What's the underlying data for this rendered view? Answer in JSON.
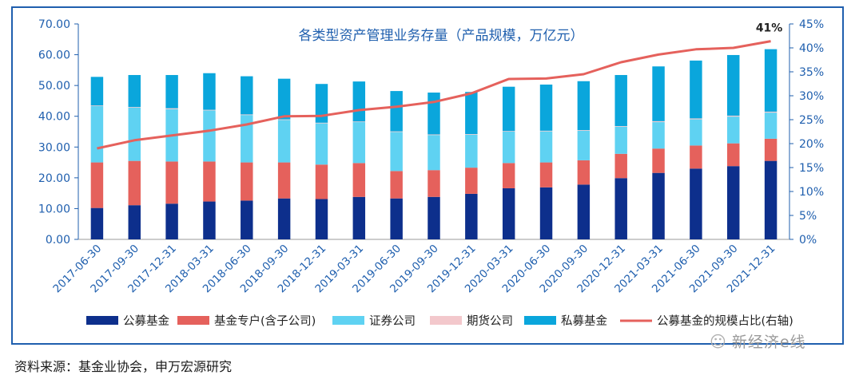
{
  "colors": {
    "public_fund": "#0d2f8c",
    "special_account": "#e5615c",
    "securities": "#5fd2f2",
    "futures": "#f3c8cc",
    "private_fund": "#0aa6dc",
    "ratio_line": "#e5615c",
    "axis_text": "#1f5fae",
    "frame": "#1f5fae"
  },
  "chart_data": {
    "type": "bar",
    "stacked": true,
    "title": "各类型资产管理业务存量（产品规模，万亿元）",
    "categories": [
      "2017-06-30",
      "2017-09-30",
      "2017-12-31",
      "2018-03-31",
      "2018-06-30",
      "2018-09-30",
      "2018-12-31",
      "2019-03-31",
      "2019-06-30",
      "2019-09-30",
      "2019-12-31",
      "2020-03-31",
      "2020-06-30",
      "2020-09-30",
      "2020-12-31",
      "2021-03-31",
      "2021-06-30",
      "2021-09-30",
      "2021-12-31"
    ],
    "series": [
      {
        "name": "公募基金",
        "key": "public_fund",
        "values": [
          10.2,
          11.1,
          11.6,
          12.3,
          12.6,
          13.3,
          13.1,
          13.8,
          13.3,
          13.8,
          14.8,
          16.6,
          16.9,
          17.8,
          19.9,
          21.6,
          23.0,
          23.8,
          25.5
        ]
      },
      {
        "name": "基金专户(含子公司)",
        "key": "special_account",
        "values": [
          14.8,
          14.4,
          13.7,
          13.0,
          12.4,
          11.7,
          11.2,
          11.0,
          8.9,
          8.7,
          8.5,
          8.2,
          8.1,
          7.9,
          7.9,
          7.9,
          7.5,
          7.4,
          7.2
        ]
      },
      {
        "name": "证券公司",
        "key": "securities",
        "values": [
          18.3,
          17.3,
          17.0,
          16.6,
          15.4,
          13.8,
          13.4,
          13.3,
          12.7,
          11.4,
          10.7,
          10.2,
          10.1,
          9.6,
          8.8,
          8.6,
          8.5,
          8.7,
          8.5
        ]
      },
      {
        "name": "期货公司",
        "key": "futures",
        "values": [
          0.2,
          0.2,
          0.3,
          0.2,
          0.2,
          0.2,
          0.2,
          0.2,
          0.2,
          0.2,
          0.2,
          0.2,
          0.2,
          0.2,
          0.2,
          0.3,
          0.3,
          0.3,
          0.3
        ]
      },
      {
        "name": "私募基金",
        "key": "private_fund",
        "values": [
          9.3,
          10.4,
          10.8,
          11.9,
          12.4,
          13.2,
          12.6,
          13.0,
          13.1,
          13.6,
          13.7,
          14.4,
          15.0,
          15.9,
          16.6,
          17.8,
          18.8,
          19.7,
          20.3
        ]
      }
    ],
    "line": {
      "name": "公募基金的规模占比(右轴)",
      "values": [
        19.0,
        20.7,
        21.7,
        22.7,
        24.0,
        25.7,
        25.8,
        27.0,
        27.7,
        28.7,
        30.5,
        33.5,
        33.6,
        34.5,
        37.0,
        38.6,
        39.7,
        40.0,
        41.4
      ]
    },
    "annotation": "41%",
    "y_left": {
      "min": 0,
      "max": 70,
      "ticks": [
        "0.00",
        "10.00",
        "20.00",
        "30.00",
        "40.00",
        "50.00",
        "60.00",
        "70.00"
      ]
    },
    "y_right": {
      "min": 0,
      "max": 45,
      "ticks": [
        "0%",
        "5%",
        "10%",
        "15%",
        "20%",
        "25%",
        "30%",
        "35%",
        "40%",
        "45%"
      ]
    },
    "legend_position": "bottom"
  },
  "footer": {
    "source": "资料来源：基金业协会，申万宏源研究",
    "watermark": "新经济e线"
  }
}
